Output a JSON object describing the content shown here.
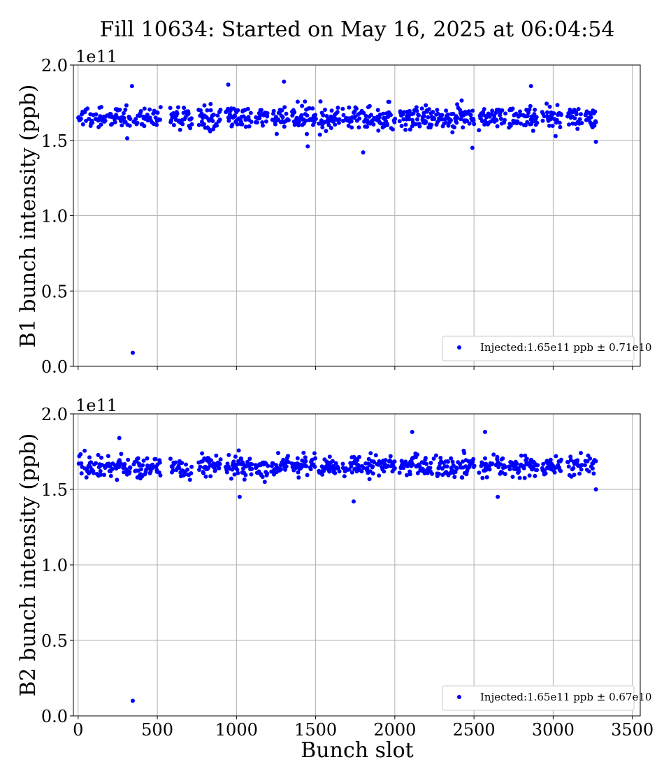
{
  "figure": {
    "title": "Fill 10634: Started on May 16, 2025 at 06:04:54"
  },
  "chart_data": [
    {
      "type": "scatter",
      "panel": "top",
      "xlabel": "",
      "ylabel": "B1 bunch intensity (ppb)",
      "offset_text": "1e11",
      "xlim": [
        -30,
        3550
      ],
      "ylim": [
        0.0,
        2.0
      ],
      "y_scale_exponent": 11,
      "xticks": [
        0,
        500,
        1000,
        1500,
        2000,
        2500,
        3000,
        3500
      ],
      "xtick_labels_shown": false,
      "yticks": [
        0.0,
        0.5,
        1.0,
        1.5,
        2.0
      ],
      "ytick_labels": [
        "0.0",
        "0.5",
        "1.0",
        "1.5",
        "2.0"
      ],
      "grid": true,
      "legend_position": "lower-right",
      "color": "#0000ff",
      "series": [
        {
          "name": "Injected:1.65e11 ppb ± 0.71e10",
          "description_of_bulk": "Bunches filled in trains from slot ~0 to ~3270, intensity mostly 1.55–1.75e11",
          "train_ranges": [
            [
              0,
              30
            ],
            [
              40,
              100
            ],
            [
              110,
              170
            ],
            [
              180,
              220
            ],
            [
              230,
              330
            ],
            [
              350,
              440
            ],
            [
              450,
              520
            ],
            [
              580,
              720
            ],
            [
              760,
              900
            ],
            [
              930,
              1100
            ],
            [
              1120,
              1200
            ],
            [
              1220,
              1330
            ],
            [
              1350,
              1500
            ],
            [
              1520,
              1650
            ],
            [
              1670,
              1780
            ],
            [
              1790,
              1870
            ],
            [
              1880,
              2000
            ],
            [
              2030,
              2160
            ],
            [
              2170,
              2250
            ],
            [
              2260,
              2400
            ],
            [
              2410,
              2500
            ],
            [
              2530,
              2700
            ],
            [
              2720,
              2800
            ],
            [
              2810,
              2900
            ],
            [
              2930,
              3050
            ],
            [
              3090,
              3180
            ],
            [
              3200,
              3270
            ]
          ],
          "mean": 1.65,
          "spread": 0.071,
          "notable_points": [
            {
              "x": 345,
              "y": 0.09
            },
            {
              "x": 340,
              "y": 1.86
            },
            {
              "x": 948,
              "y": 1.87
            },
            {
              "x": 1300,
              "y": 1.89
            },
            {
              "x": 2860,
              "y": 1.86
            },
            {
              "x": 1800,
              "y": 1.42
            },
            {
              "x": 1450,
              "y": 1.46
            },
            {
              "x": 2490,
              "y": 1.45
            },
            {
              "x": 3270,
              "y": 1.49
            }
          ]
        }
      ]
    },
    {
      "type": "scatter",
      "panel": "bottom",
      "xlabel": "Bunch slot",
      "ylabel": "B2 bunch intensity (ppb)",
      "offset_text": "1e11",
      "xlim": [
        -30,
        3550
      ],
      "ylim": [
        0.0,
        2.0
      ],
      "y_scale_exponent": 11,
      "xticks": [
        0,
        500,
        1000,
        1500,
        2000,
        2500,
        3000,
        3500
      ],
      "xtick_labels": [
        "0",
        "500",
        "1000",
        "1500",
        "2000",
        "2500",
        "3000",
        "3500"
      ],
      "yticks": [
        0.0,
        0.5,
        1.0,
        1.5,
        2.0
      ],
      "ytick_labels": [
        "0.0",
        "0.5",
        "1.0",
        "1.5",
        "2.0"
      ],
      "grid": true,
      "legend_position": "lower-right",
      "color": "#0000ff",
      "series": [
        {
          "name": "Injected:1.65e11 ppb ± 0.67e10",
          "description_of_bulk": "Bunches filled in trains from slot ~0 to ~3270, intensity mostly 1.55–1.75e11",
          "train_ranges": [
            [
              0,
              30
            ],
            [
              40,
              100
            ],
            [
              110,
              170
            ],
            [
              180,
              220
            ],
            [
              230,
              330
            ],
            [
              350,
              440
            ],
            [
              450,
              520
            ],
            [
              580,
              720
            ],
            [
              760,
              900
            ],
            [
              930,
              1100
            ],
            [
              1120,
              1200
            ],
            [
              1220,
              1330
            ],
            [
              1350,
              1500
            ],
            [
              1520,
              1650
            ],
            [
              1670,
              1780
            ],
            [
              1790,
              1870
            ],
            [
              1880,
              2000
            ],
            [
              2030,
              2160
            ],
            [
              2170,
              2250
            ],
            [
              2260,
              2400
            ],
            [
              2410,
              2500
            ],
            [
              2530,
              2700
            ],
            [
              2720,
              2800
            ],
            [
              2810,
              2900
            ],
            [
              2930,
              3050
            ],
            [
              3090,
              3180
            ],
            [
              3200,
              3270
            ]
          ],
          "mean": 1.65,
          "spread": 0.067,
          "notable_points": [
            {
              "x": 345,
              "y": 0.1
            },
            {
              "x": 260,
              "y": 1.84
            },
            {
              "x": 2110,
              "y": 1.88
            },
            {
              "x": 2570,
              "y": 1.88
            },
            {
              "x": 1740,
              "y": 1.42
            },
            {
              "x": 1020,
              "y": 1.45
            },
            {
              "x": 2650,
              "y": 1.45
            },
            {
              "x": 3270,
              "y": 1.5
            }
          ]
        }
      ]
    }
  ]
}
